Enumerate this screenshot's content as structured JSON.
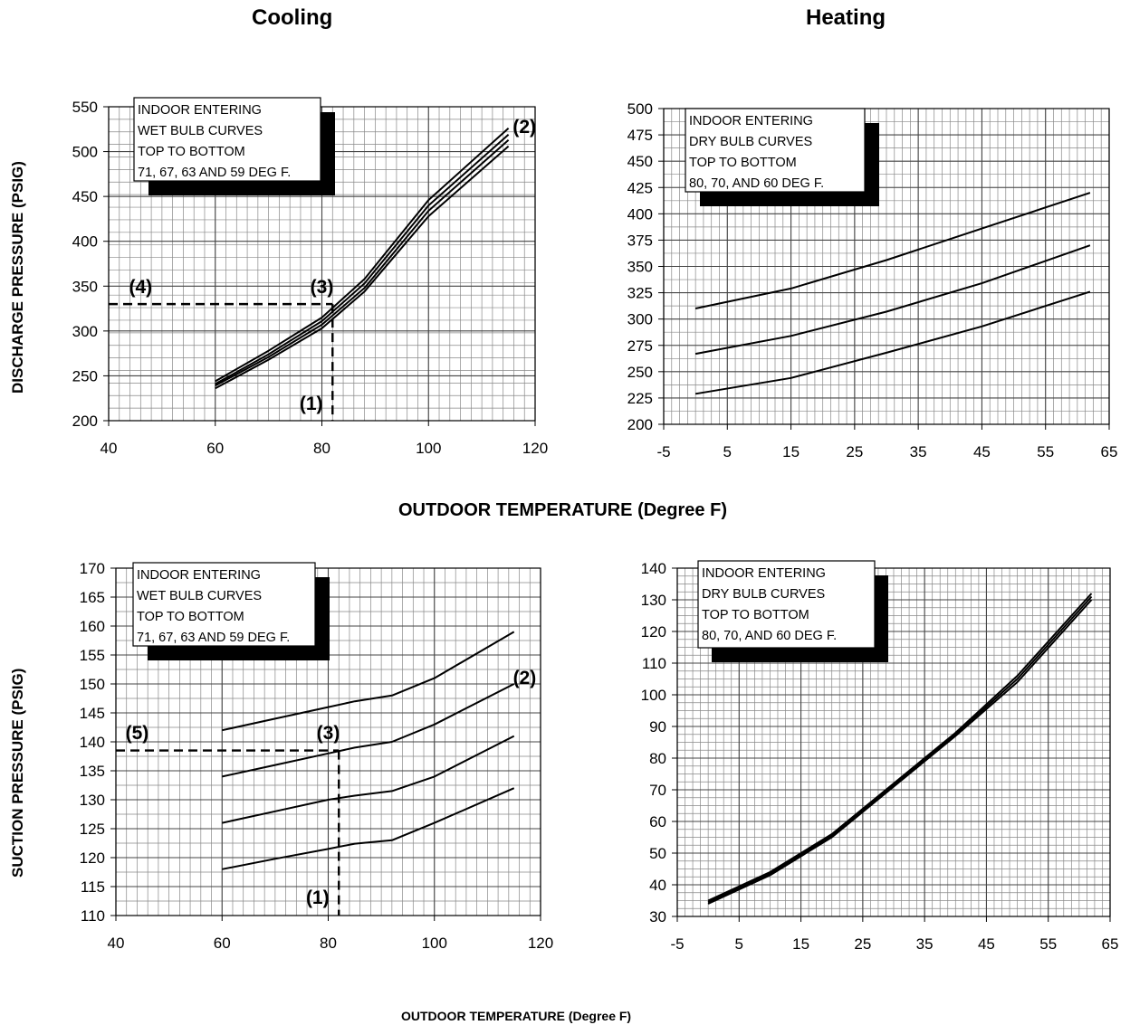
{
  "headers": {
    "cooling": "Cooling",
    "heating": "Heating"
  },
  "ylabels": {
    "discharge": "DISCHARGE PRESSURE (PSIG)",
    "suction": "SUCTION PRESSURE (PSIG)"
  },
  "xlabels": {
    "middle": "OUTDOOR TEMPERATURE (Degree F)",
    "bottom": "OUTDOOR TEMPERATURE (Degree F)"
  },
  "chart_data": [
    {
      "id": "cooling_discharge",
      "type": "line",
      "xlim": [
        40,
        120
      ],
      "ylim": [
        200,
        550
      ],
      "xticks": [
        40,
        60,
        80,
        100,
        120
      ],
      "yticks": [
        200,
        250,
        300,
        350,
        400,
        450,
        500,
        550
      ],
      "grid": true,
      "legend_lines": [
        "INDOOR ENTERING",
        "WET BULB CURVES",
        "TOP TO BOTTOM",
        "71, 67, 63 AND 59 DEG F."
      ],
      "series": [
        {
          "x": [
            60,
            70,
            80,
            88,
            100,
            115
          ],
          "y": [
            244,
            278,
            315,
            358,
            446,
            526
          ]
        },
        {
          "x": [
            60,
            70,
            80,
            88,
            100,
            115
          ],
          "y": [
            241,
            274,
            311,
            353,
            440,
            519
          ]
        },
        {
          "x": [
            60,
            70,
            80,
            88,
            100,
            115
          ],
          "y": [
            239,
            271,
            307,
            348,
            434,
            513
          ]
        },
        {
          "x": [
            60,
            70,
            80,
            88,
            100,
            115
          ],
          "y": [
            236,
            268,
            303,
            344,
            428,
            506
          ]
        }
      ],
      "annotations": [
        {
          "text": "(1)",
          "x": 78,
          "y": 212
        },
        {
          "text": "(2)",
          "x": 118,
          "y": 521
        },
        {
          "text": "(3)",
          "x": 80,
          "y": 342
        },
        {
          "text": "(4)",
          "x": 46,
          "y": 342
        }
      ],
      "guide": {
        "x": 82,
        "y": 330
      }
    },
    {
      "id": "heating_discharge",
      "type": "line",
      "xlim": [
        -5,
        65
      ],
      "ylim": [
        200,
        500
      ],
      "xticks": [
        -5,
        5,
        15,
        25,
        35,
        45,
        55,
        65
      ],
      "yticks": [
        200,
        225,
        250,
        275,
        300,
        325,
        350,
        375,
        400,
        425,
        450,
        475,
        500
      ],
      "grid": true,
      "legend_lines": [
        "INDOOR ENTERING",
        "DRY BULB CURVES",
        "TOP TO BOTTOM",
        "80, 70, AND 60 DEG F."
      ],
      "series": [
        {
          "x": [
            0,
            15,
            30,
            45,
            62
          ],
          "y": [
            310,
            329,
            356,
            386,
            420
          ]
        },
        {
          "x": [
            0,
            15,
            30,
            45,
            62
          ],
          "y": [
            267,
            284,
            307,
            334,
            370
          ]
        },
        {
          "x": [
            0,
            15,
            30,
            45,
            62
          ],
          "y": [
            229,
            244,
            268,
            293,
            326
          ]
        }
      ]
    },
    {
      "id": "cooling_suction",
      "type": "line",
      "xlim": [
        40,
        120
      ],
      "ylim": [
        110,
        170
      ],
      "xticks": [
        40,
        60,
        80,
        100,
        120
      ],
      "yticks": [
        110,
        115,
        120,
        125,
        130,
        135,
        140,
        145,
        150,
        155,
        160,
        165,
        170
      ],
      "grid": true,
      "legend_lines": [
        "INDOOR ENTERING",
        "WET BULB CURVES",
        "TOP TO BOTTOM",
        "71, 67, 63 AND 59 DEG F."
      ],
      "series": [
        {
          "x": [
            60,
            70,
            80,
            85,
            92,
            100,
            115
          ],
          "y": [
            142,
            144,
            146,
            147,
            148,
            151,
            159
          ]
        },
        {
          "x": [
            60,
            70,
            80,
            85,
            92,
            100,
            115
          ],
          "y": [
            134,
            136,
            138,
            139,
            140,
            143,
            150
          ]
        },
        {
          "x": [
            60,
            70,
            80,
            85,
            92,
            100,
            115
          ],
          "y": [
            126,
            128,
            130,
            130.7,
            131.5,
            134,
            141
          ]
        },
        {
          "x": [
            60,
            70,
            80,
            85,
            92,
            100,
            115
          ],
          "y": [
            118,
            119.8,
            121.5,
            122.4,
            123,
            126,
            132
          ]
        }
      ],
      "annotations": [
        {
          "text": "(1)",
          "x": 78,
          "y": 112
        },
        {
          "text": "(2)",
          "x": 117,
          "y": 150
        },
        {
          "text": "(3)",
          "x": 80,
          "y": 140.5
        },
        {
          "text": "(5)",
          "x": 44,
          "y": 140.5
        }
      ],
      "guide": {
        "x": 82,
        "y": 138.5
      }
    },
    {
      "id": "heating_suction",
      "type": "line",
      "xlim": [
        -5,
        65
      ],
      "ylim": [
        30,
        140
      ],
      "xticks": [
        -5,
        5,
        15,
        25,
        35,
        45,
        55,
        65
      ],
      "yticks": [
        30,
        40,
        50,
        60,
        70,
        80,
        90,
        100,
        110,
        120,
        130,
        140
      ],
      "grid": true,
      "legend_lines": [
        "INDOOR ENTERING",
        "DRY BULB CURVES",
        "TOP TO BOTTOM",
        "80, 70, AND 60 DEG F."
      ],
      "series": [
        {
          "x": [
            0,
            10,
            20,
            30,
            40,
            50,
            62
          ],
          "y": [
            35,
            44,
            56,
            72,
            88,
            106,
            132
          ]
        },
        {
          "x": [
            0,
            10,
            20,
            30,
            40,
            50,
            62
          ],
          "y": [
            34.5,
            43.5,
            55.5,
            71.5,
            87.5,
            105,
            131
          ]
        },
        {
          "x": [
            0,
            10,
            20,
            30,
            40,
            50,
            62
          ],
          "y": [
            34,
            43,
            55,
            71,
            87,
            104,
            130
          ]
        }
      ]
    }
  ]
}
